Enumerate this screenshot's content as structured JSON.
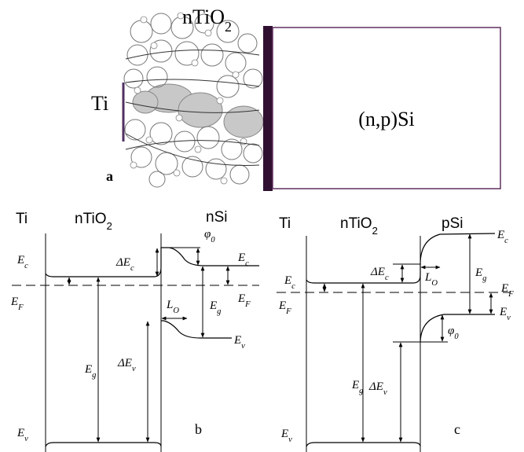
{
  "panel_a": {
    "tio2": {
      "text": "nTiO",
      "sub": "2"
    },
    "ti": "Ti",
    "si": "(n,p)Si",
    "letter": "a"
  },
  "panel_b": {
    "headers": [
      {
        "text": "Ti"
      },
      {
        "text": "nTiO",
        "sub": "2"
      },
      {
        "text": "nSi"
      }
    ],
    "labels": [
      {
        "text": "E",
        "sub": "c"
      },
      {
        "text": "ΔE",
        "sub": "c"
      },
      {
        "text": "φ",
        "sub": "0"
      },
      {
        "text": "E",
        "sub": "c"
      },
      {
        "text": "E",
        "sub": "F"
      },
      {
        "text": "E",
        "sub": "F"
      },
      {
        "text": "E",
        "sub": "g"
      },
      {
        "text": "L",
        "sub": "O"
      },
      {
        "text": "E",
        "sub": "v"
      },
      {
        "text": "E",
        "sub": "g"
      },
      {
        "text": "ΔE",
        "sub": "v"
      },
      {
        "text": "E",
        "sub": "v"
      }
    ],
    "letter": "b"
  },
  "panel_c": {
    "headers": [
      {
        "text": "Ti"
      },
      {
        "text": "nTiO",
        "sub": "2"
      },
      {
        "text": "pSi"
      }
    ],
    "labels": [
      {
        "text": "E",
        "sub": "c"
      },
      {
        "text": "E",
        "sub": "c"
      },
      {
        "text": "ΔE",
        "sub": "c"
      },
      {
        "text": "L",
        "sub": "O"
      },
      {
        "text": "E",
        "sub": "g"
      },
      {
        "text": "E",
        "sub": "F"
      },
      {
        "text": "E",
        "sub": "F"
      },
      {
        "text": "E",
        "sub": "v"
      },
      {
        "text": "φ",
        "sub": "0"
      },
      {
        "text": "E",
        "sub": "g"
      },
      {
        "text": "ΔE",
        "sub": "v"
      },
      {
        "text": "E",
        "sub": "v"
      }
    ],
    "letter": "c"
  }
}
